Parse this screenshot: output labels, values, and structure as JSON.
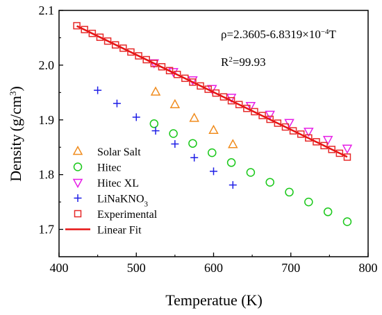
{
  "chart_data": {
    "type": "scatter",
    "xlabel": "Temperatue (K)",
    "ylabel": "Density",
    "ylabel_unit": "(g/cm",
    "ylabel_sup": "3",
    "ylabel_close": ")",
    "xlim": [
      400,
      800
    ],
    "ylim": [
      1.65,
      2.1
    ],
    "xticks": [
      400,
      500,
      600,
      700,
      800
    ],
    "yticks": [
      1.7,
      1.8,
      1.9,
      2.0,
      2.1
    ],
    "xtick_labels": [
      "400",
      "500",
      "600",
      "700",
      "800"
    ],
    "ytick_labels": [
      "1.7",
      "1.8",
      "1.9",
      "2.0",
      "2.1"
    ],
    "grid": false,
    "legend_position": "bottom-left",
    "annotation_eq_main": "ρ=2.3605-6.8319×10",
    "annotation_eq_sup": "−4",
    "annotation_eq_tail": "T",
    "annotation_r2_main": "R",
    "annotation_r2_sup": "2",
    "annotation_r2_tail": "=99.93",
    "series": [
      {
        "name": "Solar Salt",
        "marker": "triangle-up",
        "color": "#f08c1e",
        "x": [
          525,
          550,
          575,
          600,
          625
        ],
        "y": [
          1.951,
          1.928,
          1.903,
          1.881,
          1.855
        ]
      },
      {
        "name": "Hitec",
        "marker": "circle",
        "color": "#19c819",
        "x": [
          523,
          548,
          573,
          598,
          623,
          648,
          673,
          698,
          723,
          748,
          773
        ],
        "y": [
          1.893,
          1.875,
          1.857,
          1.84,
          1.822,
          1.804,
          1.786,
          1.768,
          1.75,
          1.732,
          1.714
        ]
      },
      {
        "name": "Hitec XL",
        "marker": "triangle-down",
        "color": "#e61ee6",
        "x": [
          523,
          548,
          573,
          598,
          623,
          648,
          673,
          698,
          723,
          748,
          773
        ],
        "y": [
          2.004,
          1.988,
          1.973,
          1.957,
          1.941,
          1.926,
          1.91,
          1.895,
          1.879,
          1.864,
          1.848
        ]
      },
      {
        "name": "LiNaKNO",
        "name_sub": "3",
        "marker": "plus",
        "color": "#1e1ee6",
        "x": [
          450,
          475,
          500,
          525,
          550,
          575,
          600,
          625
        ],
        "y": [
          1.954,
          1.93,
          1.905,
          1.88,
          1.856,
          1.831,
          1.806,
          1.781
        ]
      },
      {
        "name": "Experimental",
        "marker": "square",
        "color": "#e62828",
        "x": [
          423,
          433,
          443,
          453,
          463,
          473,
          483,
          493,
          503,
          513,
          523,
          533,
          543,
          553,
          563,
          573,
          583,
          593,
          603,
          613,
          623,
          633,
          643,
          653,
          663,
          673,
          683,
          693,
          703,
          713,
          723,
          733,
          743,
          753,
          763,
          773
        ],
        "y": [
          2.072,
          2.065,
          2.058,
          2.051,
          2.044,
          2.037,
          2.031,
          2.024,
          2.017,
          2.01,
          2.003,
          1.997,
          1.99,
          1.983,
          1.976,
          1.969,
          1.962,
          1.956,
          1.949,
          1.942,
          1.935,
          1.928,
          1.921,
          1.915,
          1.908,
          1.901,
          1.894,
          1.887,
          1.88,
          1.874,
          1.867,
          1.86,
          1.853,
          1.846,
          1.839,
          1.832
        ]
      },
      {
        "name": "Linear Fit",
        "marker": "line",
        "color": "#e61414",
        "intercept": 2.3605,
        "slope": -0.00068319,
        "x_range": [
          423,
          773
        ]
      }
    ]
  }
}
